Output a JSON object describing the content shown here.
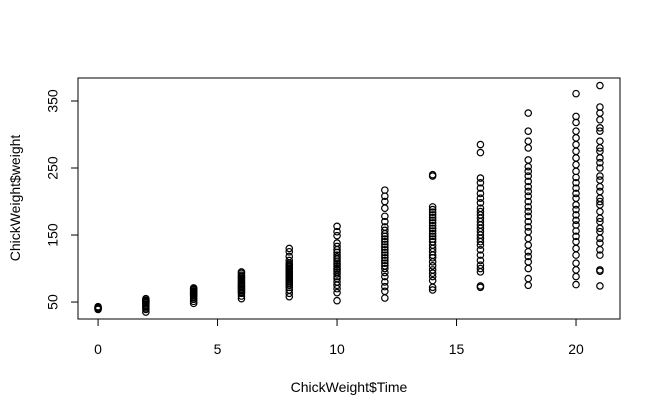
{
  "chart_data": {
    "type": "scatter",
    "title": "",
    "xlabel": "ChickWeight$Time",
    "ylabel": "ChickWeight$weight",
    "xlim": [
      -0.84,
      21.84
    ],
    "ylim": [
      24.68,
      384.32
    ],
    "xticks": [
      0,
      5,
      10,
      15,
      20
    ],
    "xtick_labels": [
      "0",
      "5",
      "10",
      "15",
      "20"
    ],
    "yticks": [
      50,
      150,
      250,
      350
    ],
    "ytick_labels": [
      "50",
      "150",
      "250",
      "350"
    ],
    "grid": false,
    "legend": "none",
    "marker": "open-circle",
    "point_color": "#000000",
    "points": [
      {
        "x": 0,
        "weights": [
          39,
          40,
          41,
          42,
          43
        ]
      },
      {
        "x": 2,
        "weights": [
          35,
          39,
          41,
          43,
          45,
          47,
          49,
          50,
          51,
          52,
          53,
          55
        ]
      },
      {
        "x": 4,
        "weights": [
          48,
          51,
          54,
          56,
          58,
          60,
          61,
          62,
          63,
          64,
          65,
          66,
          68,
          69,
          70,
          71
        ]
      },
      {
        "x": 6,
        "weights": [
          55,
          59,
          63,
          65,
          67,
          69,
          71,
          73,
          74,
          76,
          78,
          80,
          82,
          84,
          86,
          88,
          90,
          93,
          95
        ]
      },
      {
        "x": 8,
        "weights": [
          58,
          63,
          68,
          72,
          75,
          78,
          80,
          82,
          84,
          86,
          88,
          90,
          92,
          94,
          96,
          98,
          100,
          102,
          104,
          106,
          108,
          112,
          118,
          125,
          130
        ]
      },
      {
        "x": 10,
        "weights": [
          52,
          64,
          70,
          75,
          80,
          85,
          88,
          92,
          95,
          98,
          100,
          103,
          106,
          108,
          111,
          114,
          117,
          120,
          124,
          128,
          133,
          138,
          149,
          155,
          163
        ]
      },
      {
        "x": 12,
        "weights": [
          56,
          66,
          73,
          80,
          88,
          94,
          100,
          104,
          108,
          112,
          116,
          120,
          124,
          128,
          132,
          136,
          140,
          144,
          148,
          152,
          157,
          162,
          170,
          178,
          190,
          200,
          208,
          217
        ]
      },
      {
        "x": 14,
        "weights": [
          68,
          72,
          82,
          88,
          93,
          98,
          104,
          110,
          116,
          120,
          125,
          130,
          135,
          140,
          144,
          148,
          152,
          156,
          160,
          164,
          168,
          172,
          176,
          180,
          184,
          188,
          192,
          238,
          240
        ]
      },
      {
        "x": 16,
        "weights": [
          72,
          74,
          95,
          100,
          105,
          112,
          120,
          128,
          135,
          140,
          145,
          150,
          155,
          160,
          165,
          170,
          175,
          180,
          185,
          190,
          198,
          205,
          212,
          220,
          228,
          235,
          273,
          285
        ]
      },
      {
        "x": 18,
        "weights": [
          75,
          85,
          100,
          110,
          118,
          125,
          135,
          145,
          155,
          162,
          170,
          178,
          185,
          192,
          200,
          208,
          215,
          222,
          230,
          238,
          245,
          252,
          262,
          280,
          290,
          305,
          332
        ]
      },
      {
        "x": 20,
        "weights": [
          76,
          88,
          98,
          108,
          120,
          130,
          140,
          148,
          156,
          165,
          172,
          180,
          188,
          195,
          205,
          212,
          220,
          228,
          236,
          245,
          255,
          265,
          275,
          285,
          295,
          305,
          318,
          327,
          361
        ]
      },
      {
        "x": 21,
        "weights": [
          74,
          96,
          98,
          120,
          128,
          138,
          145,
          155,
          160,
          170,
          175,
          185,
          195,
          200,
          205,
          215,
          222,
          232,
          238,
          250,
          258,
          265,
          275,
          280,
          290,
          305,
          310,
          322,
          332,
          341,
          373
        ]
      }
    ]
  }
}
